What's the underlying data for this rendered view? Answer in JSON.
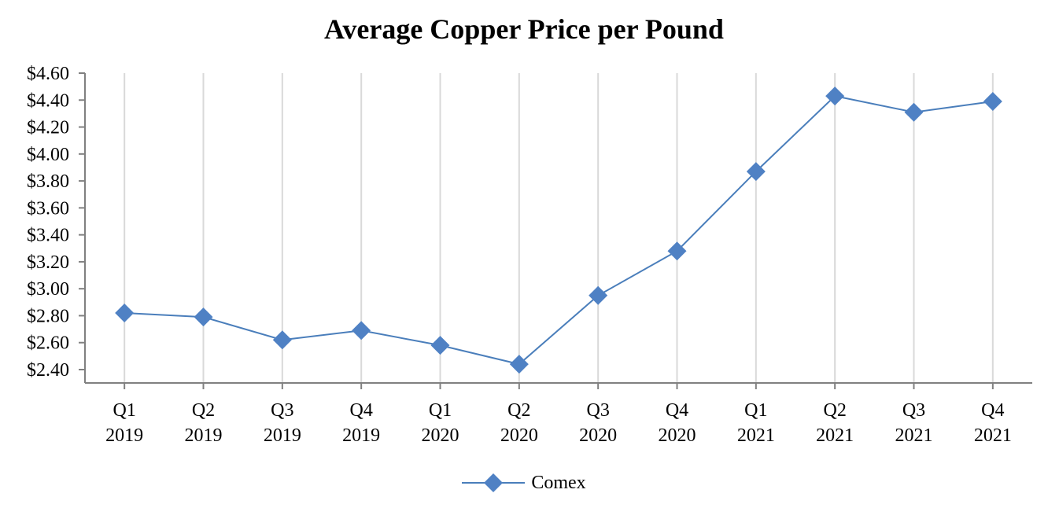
{
  "chart_data": {
    "type": "line",
    "title": "Average Copper Price per Pound",
    "categories": [
      [
        "Q1",
        "2019"
      ],
      [
        "Q2",
        "2019"
      ],
      [
        "Q3",
        "2019"
      ],
      [
        "Q4",
        "2019"
      ],
      [
        "Q1",
        "2020"
      ],
      [
        "Q2",
        "2020"
      ],
      [
        "Q3",
        "2020"
      ],
      [
        "Q4",
        "2020"
      ],
      [
        "Q1",
        "2021"
      ],
      [
        "Q2",
        "2021"
      ],
      [
        "Q3",
        "2021"
      ],
      [
        "Q4",
        "2021"
      ]
    ],
    "series": [
      {
        "name": "Comex",
        "values": [
          2.82,
          2.79,
          2.62,
          2.69,
          2.58,
          2.44,
          2.95,
          3.28,
          3.87,
          4.43,
          4.31,
          4.39
        ]
      }
    ],
    "ylim": [
      2.4,
      4.6
    ],
    "y_ticks": [
      "$2.40",
      "$2.60",
      "$2.80",
      "$3.00",
      "$3.20",
      "$3.40",
      "$3.60",
      "$3.80",
      "$4.00",
      "$4.20",
      "$4.40",
      "$4.60"
    ],
    "grid": "vertical",
    "legend_position": "bottom",
    "colors": {
      "series": "#4f81c4",
      "line": "#4a7ebb",
      "grid": "#d9d9d9",
      "axis": "#808080"
    }
  }
}
